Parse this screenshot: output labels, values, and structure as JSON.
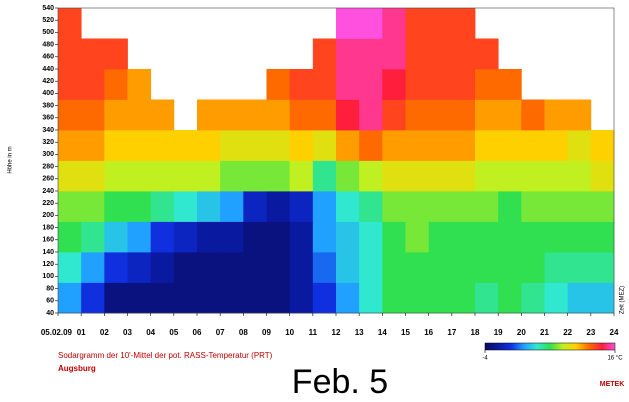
{
  "chart_data": {
    "type": "heatmap",
    "title": "Sodargramm der 10'-Mittel der pot. RASS-Temperatur (PRT)",
    "subtitle": "Augsburg",
    "annotation": "Feb. 5",
    "logo": "METEK",
    "x_label": "Zeit (MEZ)",
    "y_label": "Höhe in m",
    "x": [
      0,
      1,
      2,
      3,
      4,
      5,
      6,
      7,
      8,
      9,
      10,
      11,
      12,
      13,
      14,
      15,
      16,
      17,
      18,
      19,
      20,
      21,
      22,
      23
    ],
    "y": [
      40,
      90,
      140,
      190,
      240,
      290,
      340,
      390,
      440,
      490
    ],
    "values": [
      [
        2,
        4,
        6,
        7,
        9,
        11,
        12,
        13,
        13,
        13
      ],
      [
        0,
        2,
        5,
        7,
        9,
        11,
        12,
        13,
        13,
        null
      ],
      [
        -3,
        0,
        3,
        6,
        8,
        10,
        11,
        12,
        13,
        null
      ],
      [
        -3,
        -1,
        2,
        6,
        8,
        10,
        11,
        11,
        null,
        null
      ],
      [
        -3,
        -2,
        0,
        5,
        8,
        10,
        11,
        null,
        null,
        null
      ],
      [
        -3,
        -3,
        -1,
        4,
        8,
        10,
        null,
        null,
        null,
        null
      ],
      [
        -3,
        -3,
        -2,
        3,
        8,
        10,
        11,
        null,
        null,
        null
      ],
      [
        -3,
        -3,
        -2,
        2,
        7,
        9,
        11,
        null,
        null,
        null
      ],
      [
        -3,
        -3,
        -3,
        -1,
        7,
        9,
        11,
        null,
        null,
        null
      ],
      [
        -3,
        -3,
        -3,
        -2,
        7,
        9,
        11,
        12,
        null,
        null
      ],
      [
        -2,
        -2,
        -2,
        -1,
        8,
        10,
        12,
        13,
        null,
        null
      ],
      [
        0,
        1,
        2,
        2,
        5,
        9,
        12,
        13,
        13,
        null
      ],
      [
        2,
        3,
        3,
        4,
        7,
        11,
        14,
        15,
        15,
        16
      ],
      [
        4,
        4,
        4,
        5,
        8,
        12,
        15,
        15,
        15,
        16
      ],
      [
        6,
        6,
        6,
        7,
        9,
        11,
        13,
        14,
        15,
        15
      ],
      [
        6,
        6,
        7,
        7,
        9,
        11,
        12,
        13,
        13,
        13
      ],
      [
        6,
        6,
        6,
        7,
        9,
        11,
        12,
        13,
        13,
        13
      ],
      [
        6,
        6,
        6,
        7,
        9,
        11,
        12,
        13,
        13,
        13
      ],
      [
        5,
        6,
        6,
        7,
        8,
        10,
        11,
        12,
        13,
        null
      ],
      [
        6,
        6,
        6,
        6,
        8,
        10,
        11,
        12,
        null,
        null
      ],
      [
        5,
        6,
        6,
        7,
        8,
        10,
        12,
        null,
        null,
        null
      ],
      [
        4,
        5,
        6,
        7,
        8,
        10,
        11,
        null,
        null,
        null
      ],
      [
        3,
        5,
        6,
        7,
        8,
        9,
        11,
        null,
        null,
        null
      ],
      [
        3,
        5,
        6,
        7,
        9,
        10,
        null,
        null,
        null,
        null
      ]
    ],
    "xlim": [
      0,
      24
    ],
    "xticks": [
      {
        "value": 0,
        "label": "05.02.09"
      },
      {
        "value": 1,
        "label": "01"
      },
      {
        "value": 2,
        "label": "02"
      },
      {
        "value": 3,
        "label": "03"
      },
      {
        "value": 4,
        "label": "04"
      },
      {
        "value": 5,
        "label": "05"
      },
      {
        "value": 6,
        "label": "06"
      },
      {
        "value": 7,
        "label": "07"
      },
      {
        "value": 8,
        "label": "08"
      },
      {
        "value": 9,
        "label": "09"
      },
      10,
      11,
      12,
      13,
      14,
      15,
      16,
      17,
      18,
      19,
      20,
      21,
      22,
      23,
      24
    ],
    "ylim": [
      40,
      540
    ],
    "yticks": [
      40,
      60,
      80,
      100,
      120,
      140,
      160,
      180,
      200,
      220,
      240,
      260,
      280,
      300,
      320,
      340,
      360,
      380,
      400,
      420,
      440,
      460,
      480,
      500,
      520,
      540
    ],
    "clim": [
      -4,
      16
    ],
    "cticks": [
      -4,
      {
        "value": 16,
        "label": "16 °C"
      }
    ],
    "colormap": [
      "#0a0a60",
      "#0a1aa0",
      "#1030e0",
      "#20a0ff",
      "#30e8d0",
      "#30e050",
      "#c0f020",
      "#ffd000",
      "#ff6a00",
      "#ff1e3c",
      "#ff50e0"
    ]
  }
}
